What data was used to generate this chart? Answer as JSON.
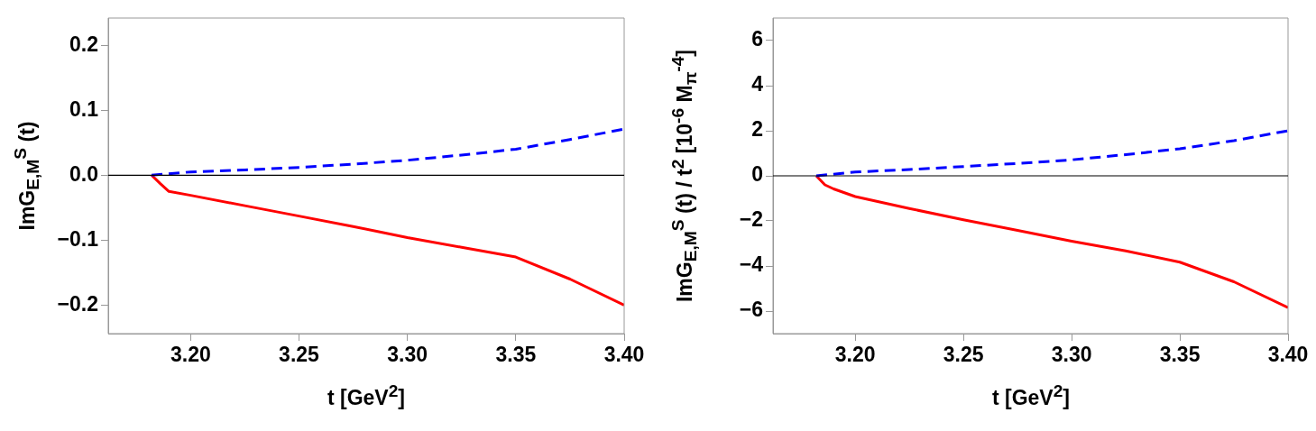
{
  "chart_data": [
    {
      "type": "line",
      "xlabel": "t [GeV$^{2}$]",
      "ylabel": "ImG$_{E,M}$$^{S}$ (t)",
      "xlim": [
        3.162,
        3.4
      ],
      "ylim": [
        -0.244,
        0.242
      ],
      "xticks": [
        {
          "value": 3.2,
          "label": "3.20"
        },
        {
          "value": 3.25,
          "label": "3.25"
        },
        {
          "value": 3.3,
          "label": "3.30"
        },
        {
          "value": 3.35,
          "label": "3.35"
        },
        {
          "value": 3.4,
          "label": "3.40"
        }
      ],
      "yticks": [
        {
          "value": -0.2,
          "label": "−0.2"
        },
        {
          "value": -0.1,
          "label": "−0.1"
        },
        {
          "value": 0,
          "label": "0.0"
        },
        {
          "value": 0.1,
          "label": "0.1"
        },
        {
          "value": 0.2,
          "label": "0.2"
        }
      ],
      "ref_lines": [
        {
          "axis": "y",
          "value": 0,
          "color": "#000000"
        }
      ],
      "series": [
        {
          "color": "#0000ff",
          "line_style": "dashed",
          "x": [
            3.182,
            3.2,
            3.225,
            3.25,
            3.275,
            3.3,
            3.325,
            3.35,
            3.375,
            3.4
          ],
          "values": [
            0,
            0.005,
            0.008,
            0.012,
            0.017,
            0.023,
            0.031,
            0.04,
            0.055,
            0.071
          ]
        },
        {
          "color": "#ff0000",
          "line_style": "solid",
          "x": [
            3.182,
            3.186,
            3.19,
            3.2,
            3.225,
            3.25,
            3.275,
            3.3,
            3.325,
            3.35,
            3.375,
            3.4
          ],
          "values": [
            0,
            -0.013,
            -0.025,
            -0.031,
            -0.047,
            -0.063,
            -0.079,
            -0.096,
            -0.111,
            -0.126,
            -0.16,
            -0.2
          ]
        }
      ]
    },
    {
      "type": "line",
      "xlabel": "t [GeV$^{2}$]",
      "ylabel": "ImG$_{E,M}$$^{S}$ (t) / t$^{2}$ [10$^{-6}$ M$_{π}$$^{-4}$]",
      "xlim": [
        3.162,
        3.4
      ],
      "ylim": [
        -7,
        7
      ],
      "xticks": [
        {
          "value": 3.2,
          "label": "3.20"
        },
        {
          "value": 3.25,
          "label": "3.25"
        },
        {
          "value": 3.3,
          "label": "3.30"
        },
        {
          "value": 3.35,
          "label": "3.35"
        },
        {
          "value": 3.4,
          "label": "3.40"
        }
      ],
      "yticks": [
        {
          "value": -6,
          "label": "−6"
        },
        {
          "value": -4,
          "label": "−4"
        },
        {
          "value": -2,
          "label": "−2"
        },
        0,
        2,
        4,
        6
      ],
      "ref_lines": [
        {
          "axis": "y",
          "value": 0,
          "color": "#000000"
        }
      ],
      "series": [
        {
          "color": "#0000ff",
          "line_style": "dashed",
          "x": [
            3.182,
            3.2,
            3.225,
            3.25,
            3.275,
            3.3,
            3.325,
            3.35,
            3.375,
            3.4
          ],
          "values": [
            0,
            0.17,
            0.28,
            0.41,
            0.55,
            0.71,
            0.94,
            1.2,
            1.56,
            2.0
          ]
        },
        {
          "color": "#ff0000",
          "line_style": "solid",
          "x": [
            3.182,
            3.186,
            3.19,
            3.2,
            3.225,
            3.25,
            3.275,
            3.3,
            3.325,
            3.35,
            3.375,
            3.4
          ],
          "values": [
            0,
            -0.4,
            -0.58,
            -0.92,
            -1.45,
            -1.95,
            -2.42,
            -2.9,
            -3.33,
            -3.83,
            -4.7,
            -5.85
          ]
        }
      ]
    }
  ]
}
